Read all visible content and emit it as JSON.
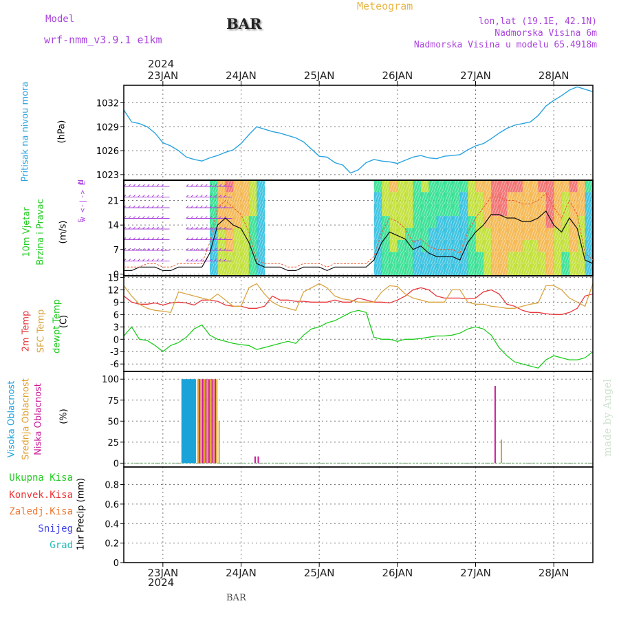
{
  "header": {
    "model_label": "Model",
    "model_name": "wrf-nmm_v3.9.1 e1km",
    "station": "BAR",
    "product": "Meteogram",
    "lonlat": "lon,lat (19.1E, 42.1N)",
    "elevation": "Nadmorska Visina 6m",
    "model_elevation": "Nadmorska Visina u modelu 65.4918m"
  },
  "footer": {
    "station": "BAR",
    "credit": "made by Angel"
  },
  "colors": {
    "pressure": "#29a3e0",
    "temp2m": "#e8363a",
    "sfc_temp": "#d9a441",
    "dewpoint": "#1ecb1e",
    "cloud_high": "#1aa3d9",
    "cloud_mid": "#e0a030",
    "cloud_low": "#cc1a99",
    "precip_total": "#22cc22",
    "precip_conv": "#ee3333",
    "precip_frz": "#ee7733",
    "precip_snow": "#4444ee",
    "precip_graupel": "#22bbbb",
    "wind_dir": "#aa44dd"
  },
  "chart_data": [
    {
      "type": "line",
      "panel": "pressure",
      "ylabel": "Pritisak na nivou mora",
      "unit": "(hPa)",
      "yticks": [
        1023,
        1026,
        1029,
        1032
      ],
      "ylim": [
        1022.3,
        1034.2
      ],
      "xlim": [
        -0.5,
        5.5
      ],
      "series": [
        {
          "x": [
            -0.5,
            -0.4,
            -0.3,
            -0.2,
            -0.1,
            0.0,
            0.1,
            0.2,
            0.3,
            0.4,
            0.5,
            0.6,
            0.7,
            0.8,
            0.9,
            1.0,
            1.1,
            1.2,
            1.3,
            1.4,
            1.5,
            1.6,
            1.7,
            1.8,
            1.9,
            2.0,
            2.1,
            2.2,
            2.3,
            2.4,
            2.5,
            2.6,
            2.7,
            2.8,
            2.9,
            3.0,
            3.1,
            3.2,
            3.3,
            3.4,
            3.5,
            3.6,
            3.7,
            3.8,
            3.9,
            4.0,
            4.1,
            4.2,
            4.3,
            4.4,
            4.5,
            4.6,
            4.7,
            4.8,
            4.9,
            5.0,
            5.1,
            5.2,
            5.3,
            5.4,
            5.5
          ],
          "y": [
            1031.1,
            1029.6,
            1029.4,
            1029.0,
            1028.2,
            1027.0,
            1026.6,
            1026.0,
            1025.2,
            1024.9,
            1024.7,
            1025.1,
            1025.4,
            1025.8,
            1026.1,
            1026.9,
            1028.0,
            1029.0,
            1028.7,
            1028.4,
            1028.2,
            1027.9,
            1027.6,
            1027.1,
            1026.2,
            1025.3,
            1025.2,
            1024.5,
            1024.2,
            1023.2,
            1023.6,
            1024.5,
            1024.9,
            1024.7,
            1024.6,
            1024.4,
            1024.8,
            1025.2,
            1025.4,
            1025.1,
            1025.0,
            1025.3,
            1025.4,
            1025.5,
            1026.1,
            1026.6,
            1026.9,
            1027.5,
            1028.2,
            1028.8,
            1029.2,
            1029.4,
            1029.6,
            1030.4,
            1031.6,
            1032.3,
            1032.9,
            1033.6,
            1034.0,
            1033.7,
            1033.4
          ]
        }
      ]
    },
    {
      "type": "line",
      "panel": "wind",
      "ylabel": "10m Vjetar",
      "ylabel2": "Brzina i Pravac",
      "unit": "(m/s)",
      "direction_key": [
        "N",
        "w <-|-> E",
        "S"
      ],
      "yticks": [
        0,
        7,
        14,
        21
      ],
      "ylim": [
        -0.5,
        26.8
      ],
      "xlim": [
        -0.5,
        5.5
      ],
      "wind_dir_arrow_band_days": [
        [
          -0.5,
          0.0
        ],
        [
          0.3,
          0.8
        ]
      ],
      "series": [
        {
          "name": "speed",
          "x": [
            -0.5,
            -0.4,
            -0.3,
            -0.2,
            -0.1,
            0.0,
            0.1,
            0.2,
            0.3,
            0.4,
            0.5,
            0.6,
            0.7,
            0.8,
            0.9,
            1.0,
            1.1,
            1.2,
            1.3,
            1.4,
            1.5,
            1.6,
            1.7,
            1.8,
            1.9,
            2.0,
            2.1,
            2.2,
            2.3,
            2.4,
            2.5,
            2.6,
            2.7,
            2.8,
            2.9,
            3.0,
            3.1,
            3.2,
            3.3,
            3.4,
            3.5,
            3.6,
            3.7,
            3.8,
            3.9,
            4.0,
            4.1,
            4.2,
            4.3,
            4.4,
            4.5,
            4.6,
            4.7,
            4.8,
            4.9,
            5.0,
            5.1,
            5.2,
            5.3,
            5.4,
            5.5
          ],
          "y": [
            1,
            1,
            2,
            2,
            2,
            1,
            1,
            2,
            2,
            2,
            2,
            6,
            14,
            16,
            14,
            13,
            9,
            3,
            2,
            2,
            2,
            1,
            1,
            2,
            2,
            2,
            1,
            2,
            2,
            2,
            2,
            2,
            4,
            9,
            12,
            11,
            10,
            7,
            8,
            6,
            5,
            5,
            5,
            4,
            9,
            12,
            14,
            17,
            17,
            16,
            16,
            15,
            15,
            16,
            18,
            14,
            12,
            16,
            13,
            4,
            3
          ]
        },
        {
          "name": "gust",
          "x": [
            -0.5,
            -0.4,
            -0.3,
            -0.2,
            -0.1,
            0.0,
            0.1,
            0.2,
            0.3,
            0.4,
            0.5,
            0.6,
            0.7,
            0.8,
            0.9,
            1.0,
            1.1,
            1.2,
            1.3,
            1.4,
            1.5,
            1.6,
            1.7,
            1.8,
            1.9,
            2.0,
            2.1,
            2.2,
            2.3,
            2.4,
            2.5,
            2.6,
            2.7,
            2.8,
            2.9,
            3.0,
            3.1,
            3.2,
            3.3,
            3.4,
            3.5,
            3.6,
            3.7,
            3.8,
            3.9,
            4.0,
            4.1,
            4.2,
            4.3,
            4.4,
            4.5,
            4.6,
            4.7,
            4.8,
            4.9,
            5.0,
            5.1,
            5.2,
            5.3,
            5.4,
            5.5
          ],
          "y": [
            2,
            2,
            2,
            3,
            3,
            2,
            2,
            3,
            3,
            3,
            3,
            9,
            19,
            21,
            19,
            17,
            12,
            4,
            3,
            3,
            3,
            2,
            2,
            3,
            3,
            3,
            2,
            3,
            3,
            3,
            3,
            3,
            5,
            12,
            16,
            15,
            13,
            9,
            10,
            8,
            7,
            7,
            7,
            6,
            12,
            16,
            19,
            22,
            22,
            21,
            21,
            20,
            20,
            21,
            23,
            19,
            16,
            21,
            17,
            6,
            4
          ]
        }
      ]
    },
    {
      "type": "line",
      "panel": "temperature",
      "ylabels": [
        "2m Temp",
        "SFC Temp",
        "dewpt Temp"
      ],
      "unit": "(C)",
      "yticks": [
        -6,
        -3,
        0,
        3,
        6,
        9,
        12,
        15
      ],
      "ylim": [
        -7.8,
        15.4
      ],
      "xlim": [
        -0.5,
        5.5
      ],
      "series": [
        {
          "name": "2m Temp",
          "x": [
            -0.5,
            -0.4,
            -0.3,
            -0.2,
            -0.1,
            0.0,
            0.1,
            0.2,
            0.3,
            0.4,
            0.5,
            0.6,
            0.7,
            0.8,
            0.9,
            1.0,
            1.1,
            1.2,
            1.3,
            1.4,
            1.5,
            1.6,
            1.7,
            1.8,
            1.9,
            2.0,
            2.1,
            2.2,
            2.3,
            2.4,
            2.5,
            2.6,
            2.7,
            2.8,
            2.9,
            3.0,
            3.1,
            3.2,
            3.3,
            3.4,
            3.5,
            3.6,
            3.7,
            3.8,
            3.9,
            4.0,
            4.1,
            4.2,
            4.3,
            4.4,
            4.5,
            4.6,
            4.7,
            4.8,
            4.9,
            5.0,
            5.1,
            5.2,
            5.3,
            5.4,
            5.5
          ],
          "y": [
            10.5,
            9.0,
            8.5,
            8.5,
            8.8,
            8.3,
            8.8,
            9.0,
            8.8,
            8.3,
            9.5,
            9.5,
            9.2,
            8.3,
            8.0,
            8.0,
            7.5,
            7.5,
            8.0,
            10.5,
            9.5,
            9.5,
            9.2,
            9.2,
            9.0,
            9.0,
            9.0,
            9.5,
            9.0,
            9.0,
            10.0,
            9.5,
            9.0,
            9.0,
            8.8,
            9.5,
            10.5,
            12.0,
            12.5,
            12.0,
            10.5,
            10.0,
            10.0,
            10.0,
            9.8,
            10.0,
            11.5,
            12.0,
            11.0,
            8.5,
            8.0,
            7.0,
            6.5,
            6.5,
            6.2,
            6.0,
            6.0,
            6.5,
            7.5,
            10.5,
            11.0
          ]
        },
        {
          "name": "SFC Temp",
          "x": [
            -0.5,
            -0.4,
            -0.3,
            -0.2,
            -0.1,
            0.0,
            0.1,
            0.2,
            0.3,
            0.4,
            0.5,
            0.6,
            0.7,
            0.8,
            0.9,
            1.0,
            1.1,
            1.2,
            1.3,
            1.4,
            1.5,
            1.6,
            1.7,
            1.8,
            1.9,
            2.0,
            2.1,
            2.2,
            2.3,
            2.4,
            2.5,
            2.6,
            2.7,
            2.8,
            2.9,
            3.0,
            3.1,
            3.2,
            3.3,
            3.4,
            3.5,
            3.6,
            3.7,
            3.8,
            3.9,
            4.0,
            4.1,
            4.2,
            4.3,
            4.4,
            4.5,
            4.6,
            4.7,
            4.8,
            4.9,
            5.0,
            5.1,
            5.2,
            5.3,
            5.4,
            5.5
          ],
          "y": [
            13.0,
            10.5,
            8.5,
            7.5,
            7.0,
            6.8,
            6.5,
            11.5,
            11.0,
            10.5,
            10.0,
            9.5,
            11.0,
            9.5,
            8.0,
            8.0,
            12.5,
            13.5,
            11.0,
            9.0,
            8.0,
            7.5,
            7.0,
            11.5,
            12.5,
            13.5,
            12.5,
            10.5,
            9.8,
            9.5,
            9.0,
            9.0,
            9.0,
            11.5,
            13.0,
            12.8,
            11.0,
            10.0,
            9.5,
            9.0,
            9.0,
            9.0,
            12.0,
            12.0,
            9.0,
            8.5,
            8.5,
            8.0,
            7.8,
            7.5,
            7.5,
            8.0,
            8.5,
            8.8,
            13.0,
            13.0,
            12.0,
            10.0,
            9.0,
            8.0,
            13.5
          ]
        },
        {
          "name": "dewpt Temp",
          "x": [
            -0.5,
            -0.4,
            -0.3,
            -0.2,
            -0.1,
            0.0,
            0.1,
            0.2,
            0.3,
            0.4,
            0.5,
            0.6,
            0.7,
            0.8,
            0.9,
            1.0,
            1.1,
            1.2,
            1.3,
            1.4,
            1.5,
            1.6,
            1.7,
            1.8,
            1.9,
            2.0,
            2.1,
            2.2,
            2.3,
            2.4,
            2.5,
            2.6,
            2.7,
            2.8,
            2.9,
            3.0,
            3.1,
            3.2,
            3.3,
            3.4,
            3.5,
            3.6,
            3.7,
            3.8,
            3.9,
            4.0,
            4.1,
            4.2,
            4.3,
            4.4,
            4.5,
            4.6,
            4.7,
            4.8,
            4.9,
            5.0,
            5.1,
            5.2,
            5.3,
            5.4,
            5.5
          ],
          "y": [
            0.8,
            3.0,
            0.0,
            -0.3,
            -1.5,
            -3.0,
            -1.5,
            -0.8,
            0.5,
            2.5,
            3.5,
            1.0,
            0.0,
            -0.5,
            -1.0,
            -1.3,
            -1.5,
            -2.5,
            -2.0,
            -1.5,
            -1.0,
            -0.5,
            -1.0,
            1.0,
            2.5,
            3.0,
            4.0,
            4.5,
            5.5,
            6.5,
            7.0,
            6.5,
            0.5,
            0.0,
            0.0,
            -0.5,
            0.0,
            0.0,
            0.2,
            0.5,
            0.8,
            0.8,
            1.0,
            1.5,
            2.5,
            3.0,
            2.5,
            1.0,
            -2.0,
            -4.0,
            -5.5,
            -6.0,
            -6.5,
            -7.0,
            -5.0,
            -4.0,
            -4.5,
            -5.0,
            -5.0,
            -4.5,
            -3.0
          ]
        }
      ]
    },
    {
      "type": "bar",
      "panel": "clouds",
      "ylabels": [
        "Visoka Oblacnost",
        "Srednja Oblacnost",
        "Niska Oblacnost"
      ],
      "unit": "(%)",
      "yticks": [
        0,
        25,
        50,
        75,
        100
      ],
      "ylim": [
        -4.6,
        109.2
      ],
      "xlim": [
        -0.5,
        5.5
      ],
      "series": [
        {
          "name": "Visoka Oblacnost",
          "x": [
            0.25,
            0.27,
            0.29,
            0.31,
            0.33,
            0.35,
            0.37,
            0.39,
            0.41
          ],
          "values": [
            100,
            100,
            100,
            100,
            100,
            100,
            100,
            100,
            100
          ]
        },
        {
          "name": "Srednja Oblacnost",
          "x": [
            0.45,
            0.49,
            0.53,
            0.57,
            0.61,
            0.65,
            0.69,
            0.72,
            4.33
          ],
          "values": [
            100,
            100,
            100,
            100,
            100,
            100,
            100,
            50,
            28
          ]
        },
        {
          "name": "Niska Oblacnost",
          "x": [
            0.47,
            0.51,
            0.55,
            0.59,
            0.63,
            0.67,
            1.18,
            1.22,
            4.25
          ],
          "values": [
            100,
            100,
            100,
            100,
            100,
            100,
            8,
            8,
            92
          ]
        }
      ]
    },
    {
      "type": "bar",
      "panel": "precip",
      "ylabels": [
        "Ukupna Kisa",
        "Konvek.Kisa",
        "Zaledj.Kisa",
        "Snijeg",
        "Grad"
      ],
      "ylabel_axis": "1hr Precip (mm)",
      "yticks": [
        0,
        0.2,
        0.4,
        0.6,
        0.8
      ],
      "ylim": [
        0,
        0.98
      ],
      "xlim": [
        -0.5,
        5.5
      ],
      "series": []
    }
  ],
  "xaxis": {
    "year": "2024",
    "ticks": [
      {
        "day": 0,
        "label": "23JAN"
      },
      {
        "day": 1,
        "label": "24JAN"
      },
      {
        "day": 2,
        "label": "25JAN"
      },
      {
        "day": 3,
        "label": "26JAN"
      },
      {
        "day": 4,
        "label": "27JAN"
      },
      {
        "day": 5,
        "label": "28JAN"
      }
    ]
  },
  "panel_labels": {
    "pressure": [
      "Pritisak na nivou mora",
      "(hPa)"
    ],
    "wind": [
      "10m Vjetar",
      "Brzina i Pravac",
      "(m/s)"
    ],
    "temp": [
      "2m Temp",
      "SFC Temp",
      "dewpt Temp",
      "(C)"
    ],
    "cloud": [
      "Visoka Oblacnost",
      "Srednja Oblacnost",
      "Niska Oblacnost",
      "(%)"
    ],
    "precip_legend": [
      "Ukupna Kisa",
      "Konvek.Kisa",
      "Zaledj.Kisa",
      "Snijeg",
      "Grad"
    ],
    "precip_axis": "1hr Precip (mm)"
  }
}
